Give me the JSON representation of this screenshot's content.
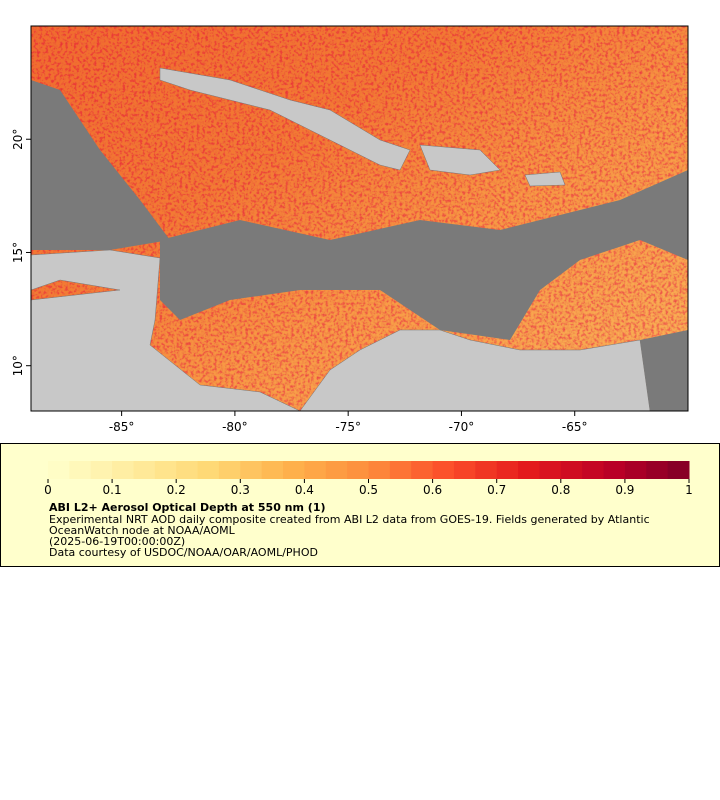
{
  "map": {
    "xlim": [
      -89,
      -60
    ],
    "ylim": [
      8,
      25
    ],
    "xticks": [
      {
        "value": -85,
        "label": "-85°"
      },
      {
        "value": -80,
        "label": "-80°"
      },
      {
        "value": -75,
        "label": "-75°"
      },
      {
        "value": -70,
        "label": "-70°"
      },
      {
        "value": -65,
        "label": "-65°"
      }
    ],
    "yticks": [
      {
        "value": 10,
        "label": "10°"
      },
      {
        "value": 15,
        "label": "15°"
      },
      {
        "value": 20,
        "label": "20°"
      }
    ]
  },
  "legend": {
    "colorbar_lim": [
      0,
      1
    ],
    "colorbar_ticks": [
      0,
      0.1,
      0.2,
      0.3,
      0.4,
      0.5,
      0.6,
      0.7,
      0.8,
      0.9,
      1
    ],
    "colormap": [
      "#ffffcc",
      "#ffeda0",
      "#fed976",
      "#feb24c",
      "#fd8d3c",
      "#fc4e2a",
      "#e31a1c",
      "#bd0026",
      "#800026"
    ],
    "title": "ABI L2+ Aerosol Optical Depth at 550 nm (1)",
    "description": "Experimental NRT AOD daily composite created from ABI L2 data from GOES-19. Fields generated by Atlantic OceanWatch node at NOAA/AOML",
    "time": "(2025-06-19T00:00:00Z)",
    "credit": "Data courtesy of USDOC/NOAA/OAR/AOML/PHOD"
  }
}
